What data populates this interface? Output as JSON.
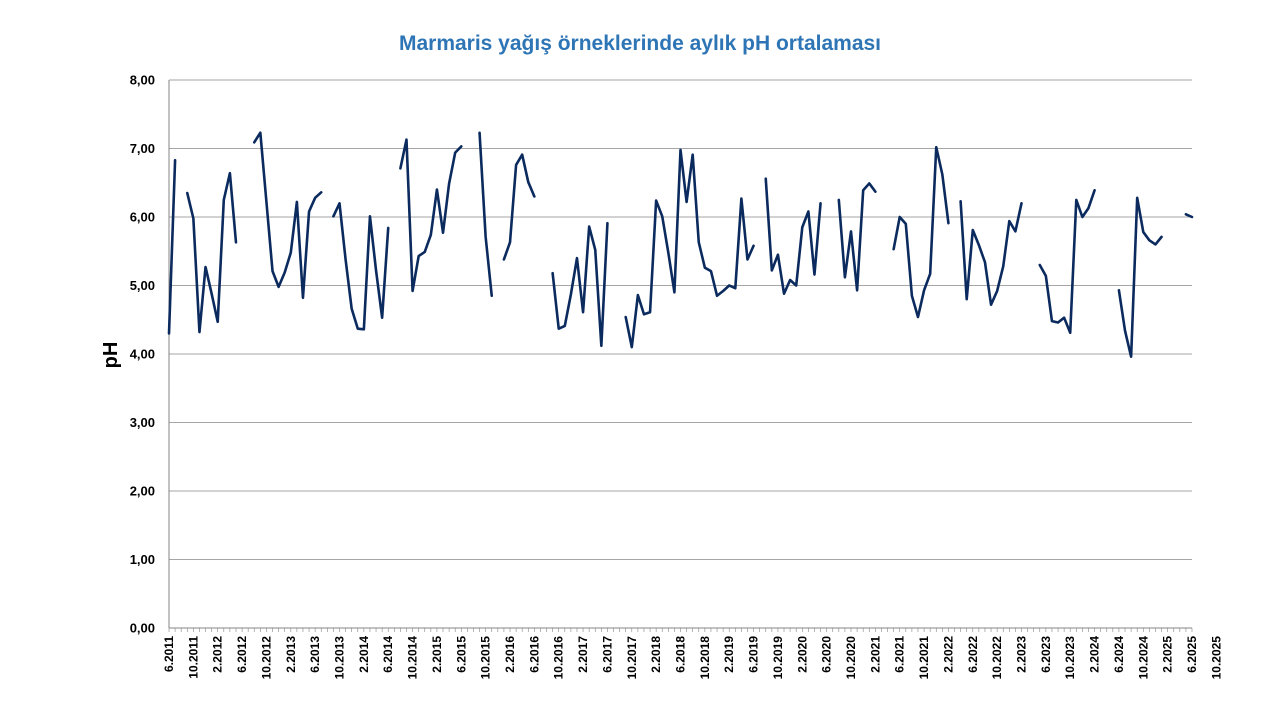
{
  "chart_data": {
    "type": "line",
    "title": "Marmaris yağış örneklerinde aylık pH ortalaması",
    "ylabel": "pH",
    "xlabel": "",
    "ylim": [
      0,
      8
    ],
    "y_ticks": [
      "0,00",
      "1,00",
      "2,00",
      "3,00",
      "4,00",
      "5,00",
      "6,00",
      "7,00",
      "8,00"
    ],
    "grid": true,
    "x_tick_labels": [
      {
        "month_index": 0,
        "label": "6.2011"
      },
      {
        "month_index": 4,
        "label": "10.2011"
      },
      {
        "month_index": 8,
        "label": "2.2012"
      },
      {
        "month_index": 12,
        "label": "6.2012"
      },
      {
        "month_index": 16,
        "label": "10.2012"
      },
      {
        "month_index": 20,
        "label": "2.2013"
      },
      {
        "month_index": 24,
        "label": "6.2013"
      },
      {
        "month_index": 28,
        "label": "10.2013"
      },
      {
        "month_index": 32,
        "label": "2.2014"
      },
      {
        "month_index": 36,
        "label": "6.2014"
      },
      {
        "month_index": 40,
        "label": "10.2014"
      },
      {
        "month_index": 44,
        "label": "2.2015"
      },
      {
        "month_index": 48,
        "label": "6.2015"
      },
      {
        "month_index": 52,
        "label": "10.2015"
      },
      {
        "month_index": 56,
        "label": "2.2016"
      },
      {
        "month_index": 60,
        "label": "6.2016"
      },
      {
        "month_index": 64,
        "label": "10.2016"
      },
      {
        "month_index": 68,
        "label": "2.2017"
      },
      {
        "month_index": 72,
        "label": "6.2017"
      },
      {
        "month_index": 76,
        "label": "10.2017"
      },
      {
        "month_index": 80,
        "label": "2.2018"
      },
      {
        "month_index": 84,
        "label": "6.2018"
      },
      {
        "month_index": 88,
        "label": "10.2018"
      },
      {
        "month_index": 92,
        "label": "2.2019"
      },
      {
        "month_index": 96,
        "label": "6.2019"
      },
      {
        "month_index": 100,
        "label": "10.2019"
      },
      {
        "month_index": 104,
        "label": "2.2020"
      },
      {
        "month_index": 108,
        "label": "6.2020"
      },
      {
        "month_index": 112,
        "label": "10.2020"
      },
      {
        "month_index": 116,
        "label": "2.2021"
      },
      {
        "month_index": 120,
        "label": "6.2021"
      },
      {
        "month_index": 124,
        "label": "10.2021"
      },
      {
        "month_index": 128,
        "label": "2.2022"
      },
      {
        "month_index": 132,
        "label": "6.2022"
      },
      {
        "month_index": 136,
        "label": "10.2022"
      },
      {
        "month_index": 140,
        "label": "2.2023"
      },
      {
        "month_index": 144,
        "label": "6.2023"
      },
      {
        "month_index": 148,
        "label": "10.2023"
      },
      {
        "month_index": 152,
        "label": "2.2024"
      },
      {
        "month_index": 156,
        "label": "6.2024"
      },
      {
        "month_index": 160,
        "label": "10.2024"
      },
      {
        "month_index": 164,
        "label": "2.2025"
      },
      {
        "month_index": 168,
        "label": "6.2025"
      },
      {
        "month_index": 172,
        "label": "10.2025"
      }
    ],
    "series": [
      {
        "name": "pH",
        "color": "#0b2a5e",
        "start": "6.2011",
        "values": [
          4.3,
          6.83,
          null,
          6.35,
          5.98,
          4.32,
          5.27,
          4.88,
          4.47,
          6.25,
          6.64,
          5.63,
          null,
          null,
          7.09,
          7.23,
          6.22,
          5.21,
          4.98,
          5.19,
          5.48,
          6.22,
          4.82,
          6.08,
          6.28,
          6.36,
          null,
          6.01,
          6.2,
          5.38,
          4.66,
          4.37,
          4.36,
          6.01,
          5.22,
          4.53,
          5.84,
          null,
          6.71,
          7.13,
          4.92,
          5.43,
          5.49,
          5.74,
          6.4,
          5.77,
          6.49,
          6.94,
          7.03,
          null,
          null,
          7.23,
          5.71,
          4.85,
          null,
          5.38,
          5.63,
          6.76,
          6.91,
          6.51,
          6.3,
          null,
          null,
          5.18,
          4.37,
          4.41,
          4.87,
          5.4,
          4.61,
          5.86,
          5.52,
          4.12,
          5.91,
          null,
          null,
          4.54,
          4.1,
          4.86,
          4.58,
          4.61,
          6.24,
          6.01,
          5.48,
          4.9,
          6.98,
          6.22,
          6.91,
          5.63,
          5.26,
          5.21,
          4.85,
          4.92,
          5.0,
          4.96,
          6.27,
          5.38,
          5.58,
          null,
          6.56,
          5.22,
          5.45,
          4.88,
          5.08,
          5.0,
          5.85,
          6.08,
          5.16,
          6.2,
          null,
          null,
          6.25,
          5.12,
          5.79,
          4.93,
          6.39,
          6.49,
          6.37,
          null,
          null,
          5.53,
          6.0,
          5.9,
          4.85,
          4.54,
          4.93,
          5.17,
          7.02,
          6.62,
          5.91,
          null,
          6.23,
          4.8,
          5.81,
          5.59,
          5.34,
          4.72,
          4.92,
          5.28,
          5.94,
          5.79,
          6.2,
          null,
          null,
          5.3,
          5.14,
          4.48,
          4.46,
          4.53,
          4.31,
          6.25,
          6.0,
          6.13,
          6.39,
          null,
          null,
          null,
          4.93,
          4.34,
          3.96,
          6.28,
          5.78,
          5.66,
          5.6,
          5.71,
          null,
          null,
          null,
          6.04,
          6.0
        ]
      }
    ]
  }
}
